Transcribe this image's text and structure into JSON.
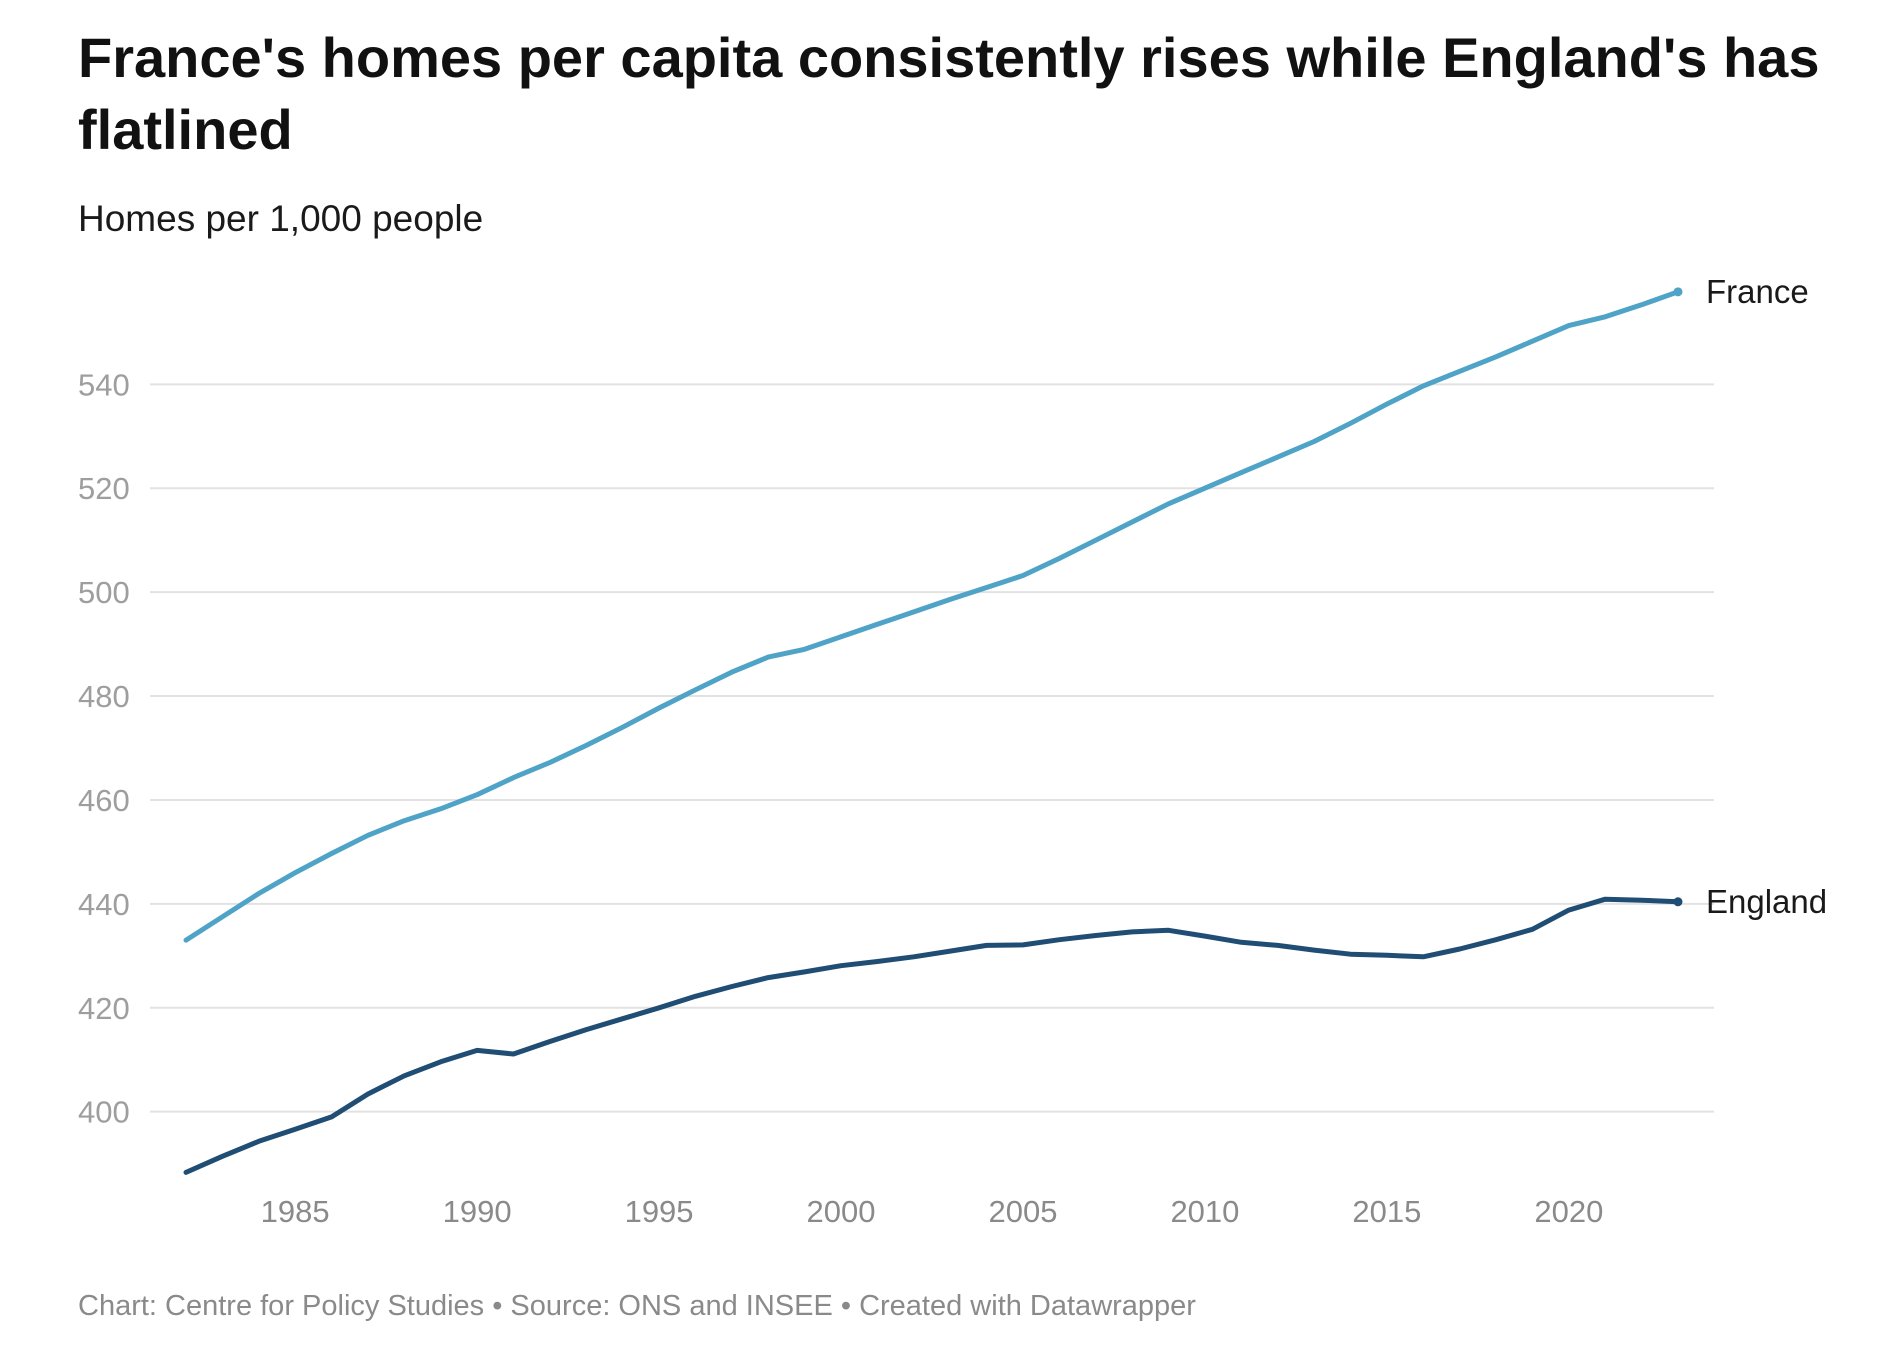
{
  "chart_data": {
    "type": "line",
    "title": "France's homes per capita consistently rises while England's has flatlined",
    "subtitle": "Homes per 1,000 people",
    "footer": "Chart: Centre for Policy Studies • Source: ONS and INSEE • Created with Datawrapper",
    "xlim": [
      1982,
      2023
    ],
    "ylim": [
      388,
      557
    ],
    "x_ticks": [
      1985,
      1990,
      1995,
      2000,
      2005,
      2010,
      2015,
      2020
    ],
    "y_ticks": [
      400,
      420,
      440,
      460,
      480,
      500,
      520,
      540
    ],
    "grid": true,
    "series": [
      {
        "name": "France",
        "color": "#4fa3c7",
        "x": [
          1982,
          1983,
          1984,
          1985,
          1986,
          1987,
          1988,
          1989,
          1990,
          1991,
          1992,
          1993,
          1994,
          1995,
          1996,
          1997,
          1998,
          1999,
          2000,
          2001,
          2002,
          2003,
          2004,
          2005,
          2006,
          2007,
          2008,
          2009,
          2010,
          2011,
          2012,
          2013,
          2014,
          2015,
          2016,
          2017,
          2018,
          2019,
          2020,
          2021,
          2022,
          2023
        ],
        "values": [
          433,
          437.5,
          442,
          446,
          449.7,
          453.2,
          456,
          458.3,
          461,
          464.3,
          467.2,
          470.5,
          474,
          477.7,
          481.2,
          484.6,
          487.5,
          489,
          491.4,
          493.8,
          496.2,
          498.6,
          500.9,
          503.2,
          506.5,
          510,
          513.5,
          517,
          520,
          523,
          526,
          529,
          532.5,
          536.2,
          539.7,
          542.5,
          545.3,
          548.3,
          551.3,
          553,
          555.3,
          557.8
        ]
      },
      {
        "name": "England",
        "color": "#204d73",
        "x": [
          1982,
          1983,
          1984,
          1985,
          1986,
          1987,
          1988,
          1989,
          1990,
          1991,
          1992,
          1993,
          1994,
          1995,
          1996,
          1997,
          1998,
          1999,
          2000,
          2001,
          2002,
          2003,
          2004,
          2005,
          2006,
          2007,
          2008,
          2009,
          2010,
          2011,
          2012,
          2013,
          2014,
          2015,
          2016,
          2017,
          2018,
          2019,
          2020,
          2021,
          2022,
          2023
        ],
        "values": [
          388.3,
          391.4,
          394.3,
          396.6,
          399,
          403.4,
          406.9,
          409.6,
          411.8,
          411.1,
          413.5,
          415.8,
          417.9,
          420,
          422.2,
          424.1,
          425.8,
          426.9,
          428.1,
          428.9,
          429.8,
          430.9,
          432,
          432.1,
          433.1,
          433.9,
          434.6,
          434.9,
          433.8,
          432.6,
          432,
          431.1,
          430.3,
          430.1,
          429.8,
          431.3,
          433.1,
          435.1,
          438.8,
          440.9,
          440.7,
          440.4
        ]
      }
    ]
  }
}
